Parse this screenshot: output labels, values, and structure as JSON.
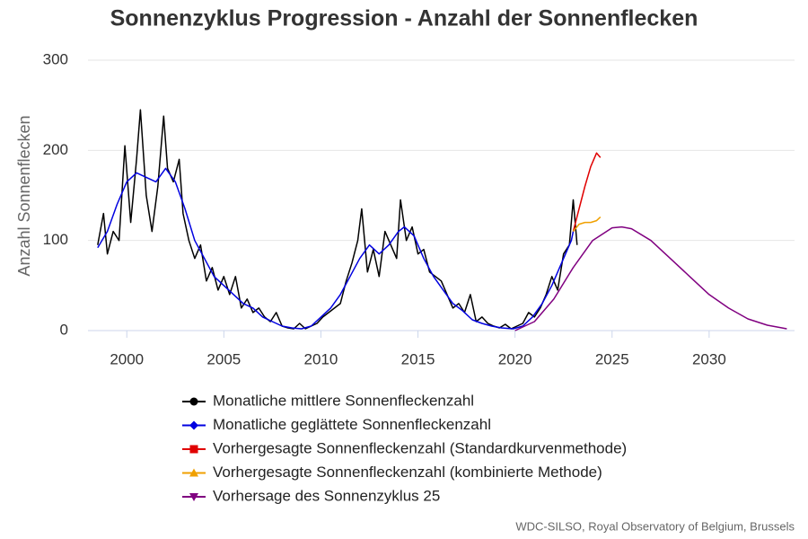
{
  "chart_data": {
    "type": "line",
    "title": "Sonnenzyklus Progression - Anzahl der Sonnenflecken",
    "y_label": "Anzahl Sonnenflecken",
    "credit": "WDC-SILSO, Royal Observatory of Belgium, Brussels",
    "xlim": [
      1998,
      2034.4
    ],
    "ylim": [
      0,
      300
    ],
    "xticks": [
      2000,
      2005,
      2010,
      2015,
      2020,
      2025,
      2030
    ],
    "yticks": [
      0,
      100,
      200,
      300
    ],
    "grid": true,
    "legend": "bottom",
    "series": [
      {
        "name": "Monatliche mittlere Sonnenfleckenzahl",
        "color": "#000000",
        "marker": "circle",
        "x": [
          1998.5,
          1998.8,
          1999.0,
          1999.3,
          1999.6,
          1999.9,
          2000.2,
          2000.5,
          2000.7,
          2001.0,
          2001.3,
          2001.6,
          2001.9,
          2002.1,
          2002.4,
          2002.7,
          2002.9,
          2003.2,
          2003.5,
          2003.8,
          2004.1,
          2004.4,
          2004.7,
          2005.0,
          2005.3,
          2005.6,
          2005.9,
          2006.2,
          2006.5,
          2006.8,
          2007.1,
          2007.4,
          2007.7,
          2008.0,
          2008.3,
          2008.6,
          2008.9,
          2009.2,
          2009.5,
          2009.8,
          2010.1,
          2010.4,
          2010.7,
          2011.0,
          2011.3,
          2011.6,
          2011.9,
          2012.1,
          2012.4,
          2012.7,
          2013.0,
          2013.3,
          2013.6,
          2013.9,
          2014.1,
          2014.4,
          2014.7,
          2015.0,
          2015.3,
          2015.6,
          2015.9,
          2016.2,
          2016.5,
          2016.8,
          2017.1,
          2017.4,
          2017.7,
          2018.0,
          2018.3,
          2018.6,
          2018.9,
          2019.2,
          2019.5,
          2019.8,
          2020.1,
          2020.4,
          2020.7,
          2021.0,
          2021.3,
          2021.6,
          2021.9,
          2022.2,
          2022.5,
          2022.8,
          2023.0,
          2023.2
        ],
        "values": [
          95,
          130,
          85,
          110,
          100,
          205,
          120,
          190,
          245,
          150,
          110,
          160,
          238,
          180,
          165,
          190,
          130,
          100,
          80,
          95,
          55,
          70,
          45,
          60,
          40,
          60,
          25,
          35,
          20,
          25,
          15,
          10,
          20,
          5,
          3,
          2,
          8,
          2,
          5,
          8,
          15,
          20,
          25,
          30,
          55,
          75,
          100,
          135,
          65,
          90,
          60,
          110,
          95,
          80,
          145,
          100,
          115,
          85,
          90,
          65,
          60,
          55,
          40,
          25,
          30,
          20,
          40,
          10,
          15,
          8,
          5,
          3,
          7,
          2,
          5,
          8,
          20,
          15,
          25,
          40,
          60,
          45,
          85,
          95,
          145,
          95
        ]
      },
      {
        "name": "Monatliche geglättete Sonnenfleckenzahl",
        "color": "#0000e0",
        "marker": "diamond",
        "x": [
          1998.5,
          1999.0,
          1999.5,
          2000.0,
          2000.5,
          2001.0,
          2001.5,
          2002.0,
          2002.5,
          2003.0,
          2003.5,
          2004.0,
          2004.5,
          2005.0,
          2005.5,
          2006.0,
          2006.5,
          2007.0,
          2007.5,
          2008.0,
          2008.5,
          2009.0,
          2009.5,
          2010.0,
          2010.5,
          2011.0,
          2011.5,
          2012.0,
          2012.5,
          2013.0,
          2013.5,
          2014.0,
          2014.3,
          2014.8,
          2015.3,
          2015.8,
          2016.3,
          2016.8,
          2017.3,
          2017.8,
          2018.3,
          2018.8,
          2019.3,
          2019.9,
          2020.4,
          2020.9,
          2021.4,
          2021.9,
          2022.4,
          2022.9,
          2023.0
        ],
        "values": [
          92,
          110,
          140,
          165,
          175,
          170,
          165,
          180,
          165,
          135,
          100,
          80,
          60,
          50,
          40,
          30,
          25,
          15,
          10,
          5,
          3,
          2,
          5,
          15,
          25,
          40,
          60,
          80,
          95,
          85,
          95,
          110,
          115,
          105,
          80,
          60,
          45,
          30,
          22,
          12,
          8,
          5,
          3,
          2,
          5,
          15,
          30,
          50,
          75,
          100,
          110
        ]
      },
      {
        "name": "Vorhergesagte Sonnenfleckenzahl (Standardkurvenmethode)",
        "color": "#e00000",
        "marker": "square",
        "x": [
          2023.0,
          2023.3,
          2023.6,
          2023.9,
          2024.2,
          2024.4
        ],
        "values": [
          110,
          135,
          160,
          182,
          197,
          192
        ]
      },
      {
        "name": "Vorhergesagte Sonnenfleckenzahl (kombinierte Methode)",
        "color": "#f0a000",
        "marker": "triangle",
        "x": [
          2023.0,
          2023.3,
          2023.6,
          2023.9,
          2024.2,
          2024.4
        ],
        "values": [
          110,
          118,
          120,
          120,
          122,
          126
        ]
      },
      {
        "name": "Vorhersage des Sonnenzyklus 25",
        "color": "#800080",
        "marker": "triangle-down",
        "x": [
          2020.0,
          2021.0,
          2022.0,
          2023.0,
          2024.0,
          2025.0,
          2025.5,
          2026.0,
          2027.0,
          2028.0,
          2029.0,
          2030.0,
          2031.0,
          2032.0,
          2033.0,
          2034.0
        ],
        "values": [
          0,
          10,
          35,
          70,
          100,
          114,
          115,
          113,
          100,
          80,
          60,
          40,
          25,
          13,
          6,
          2
        ]
      }
    ]
  }
}
